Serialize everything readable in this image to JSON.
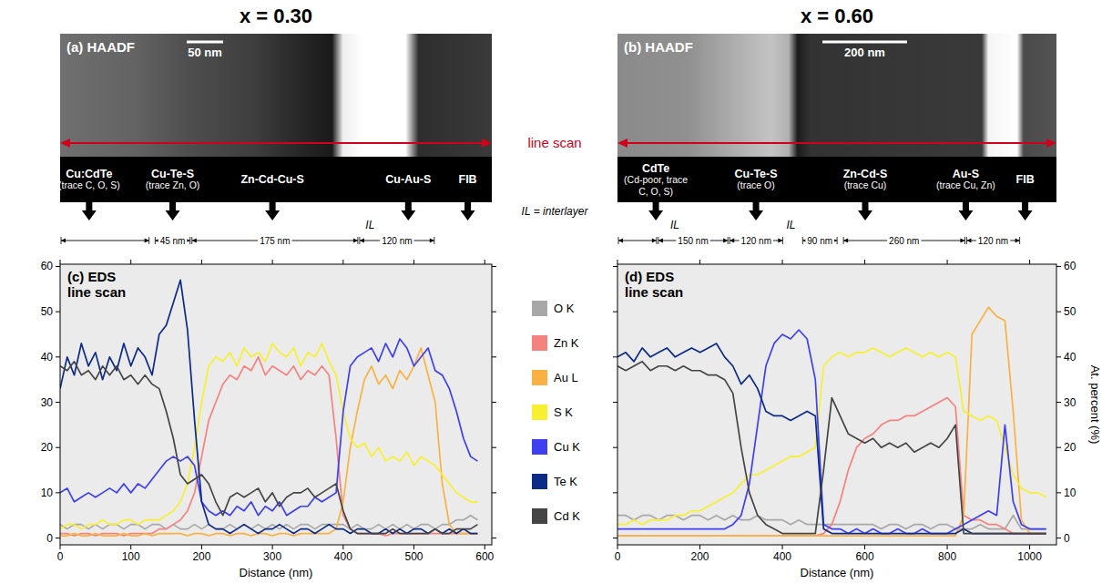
{
  "figure": {
    "line_scan_label": "line scan",
    "interlayer_note": "IL = interlayer"
  },
  "chart_data": [
    {
      "type": "line",
      "title": "x = 0.30",
      "image_label": "(a) HAADF",
      "scale_bar": "50 nm",
      "panel_label": "(c) EDS line scan",
      "x_label": "Distance (nm)",
      "legend": "right",
      "grid": false,
      "phases": [
        {
          "name": "Cu:CdTe",
          "note": "(trace C, O, S)",
          "at": 41
        },
        {
          "name": "Cu-Te-S",
          "note": "(trace Zn, O)",
          "at": 159
        },
        {
          "name": "Zn-Cd-Cu-S",
          "at": 300
        },
        {
          "name": "Cu-Au-S",
          "at": 492
        },
        {
          "name": "FIB",
          "at": 576
        }
      ],
      "spans": [
        {
          "start": 0,
          "end": 127
        },
        {
          "start": 133,
          "end": 185,
          "label": "45 nm"
        },
        {
          "start": 185,
          "end": 422,
          "label": "175 nm"
        },
        {
          "start": 422,
          "end": 530,
          "label": "120 nm"
        }
      ],
      "il_marks": [
        {
          "at": 438,
          "label": "IL"
        }
      ],
      "xlim": [
        0,
        610
      ],
      "xticks": [
        0,
        100,
        200,
        300,
        400,
        500,
        600
      ],
      "ylim": [
        -1.5,
        60.5
      ],
      "yticks": [
        0,
        10,
        20,
        30,
        40,
        50,
        60
      ],
      "x": [
        0,
        10,
        20,
        30,
        40,
        50,
        60,
        70,
        80,
        90,
        100,
        110,
        120,
        130,
        140,
        150,
        160,
        170,
        180,
        190,
        200,
        210,
        220,
        230,
        240,
        250,
        260,
        270,
        280,
        290,
        300,
        310,
        320,
        330,
        340,
        350,
        360,
        370,
        380,
        390,
        400,
        410,
        420,
        430,
        440,
        450,
        460,
        470,
        480,
        490,
        500,
        510,
        520,
        530,
        540,
        550,
        560,
        570,
        580,
        590
      ],
      "series": [
        {
          "name": "O K",
          "color": "#a8a8a8",
          "values": [
            3,
            2,
            3,
            3,
            2,
            3,
            2,
            3,
            3,
            2,
            3,
            3,
            2,
            3,
            3,
            2,
            3,
            2,
            2,
            3,
            2,
            3,
            2,
            2,
            3,
            2,
            3,
            2,
            3,
            2,
            3,
            2,
            3,
            2,
            3,
            3,
            2,
            3,
            3,
            3,
            3,
            2,
            3,
            2,
            2,
            3,
            2,
            3,
            2,
            3,
            2,
            3,
            3,
            2,
            3,
            3,
            4,
            4,
            5,
            4
          ]
        },
        {
          "name": "Zn K",
          "color": "#f4827e",
          "values": [
            1,
            1,
            0.5,
            1,
            1,
            0.5,
            1,
            1,
            1,
            0.5,
            1,
            1,
            1,
            1,
            2,
            2,
            3,
            4,
            6,
            10,
            18,
            26,
            30,
            34,
            36,
            35,
            38,
            37,
            40,
            36,
            38,
            37,
            36,
            38,
            35,
            37,
            36,
            38,
            36,
            22,
            5,
            2,
            1,
            1,
            1,
            1,
            0.5,
            1,
            1,
            1,
            1,
            1,
            1,
            1,
            1,
            1,
            1,
            1,
            1,
            1
          ]
        },
        {
          "name": "Au L",
          "color": "#f8b142",
          "values": [
            0.5,
            0.5,
            1,
            0.5,
            0.5,
            1,
            0.5,
            0.5,
            0.5,
            1,
            0.5,
            0.5,
            1,
            0.5,
            1,
            1,
            1,
            1,
            0.5,
            1,
            1,
            0.5,
            1,
            1,
            0.5,
            1,
            1,
            0.5,
            1,
            1,
            0.5,
            1,
            1,
            0.5,
            1,
            1,
            1,
            1,
            1,
            2,
            8,
            20,
            28,
            35,
            38,
            34,
            36,
            33,
            37,
            35,
            38,
            42,
            36,
            30,
            12,
            3,
            1,
            1,
            1,
            1
          ]
        },
        {
          "name": "S K",
          "color": "#f7f030",
          "values": [
            2,
            3,
            3,
            2,
            3,
            3,
            4,
            3,
            3,
            4,
            4,
            3,
            4,
            4,
            4,
            5,
            6,
            8,
            12,
            20,
            30,
            38,
            40,
            39,
            41,
            38,
            42,
            40,
            41,
            39,
            43,
            41,
            40,
            42,
            38,
            41,
            40,
            43,
            39,
            36,
            28,
            22,
            20,
            21,
            18,
            20,
            17,
            18,
            17,
            19,
            16,
            18,
            17,
            16,
            14,
            12,
            10,
            9,
            8,
            8
          ]
        },
        {
          "name": "Cu K",
          "color": "#3f3ff2",
          "values": [
            10,
            11,
            8,
            9,
            10,
            9,
            10,
            11,
            10,
            12,
            10,
            12,
            11,
            13,
            15,
            17,
            18,
            17,
            18,
            16,
            8,
            6,
            5,
            6,
            5,
            7,
            6,
            8,
            5,
            7,
            6,
            8,
            5,
            6,
            7,
            7,
            9,
            8,
            9,
            10,
            28,
            38,
            40,
            41,
            42,
            39,
            43,
            40,
            44,
            42,
            38,
            40,
            42,
            37,
            36,
            33,
            28,
            22,
            18,
            17
          ]
        },
        {
          "name": "Te K",
          "color": "#0c2b86",
          "values": [
            33,
            40,
            36,
            43,
            38,
            41,
            35,
            40,
            37,
            43,
            38,
            42,
            40,
            36,
            45,
            47,
            52,
            57,
            46,
            26,
            8,
            3,
            2,
            2,
            1,
            2,
            3,
            2,
            1,
            2,
            2,
            3,
            2,
            1,
            2,
            2,
            1,
            2,
            3,
            2,
            2,
            1,
            2,
            2,
            1,
            1,
            2,
            1,
            2,
            1,
            2,
            2,
            1,
            2,
            1,
            2,
            1,
            2,
            1,
            1
          ]
        },
        {
          "name": "Cd K",
          "color": "#454545",
          "values": [
            38,
            37,
            39,
            36,
            37,
            35,
            38,
            36,
            38,
            35,
            36,
            34,
            36,
            34,
            33,
            28,
            22,
            14,
            12,
            13,
            14,
            12,
            8,
            5,
            9,
            10,
            9,
            10,
            11,
            8,
            10,
            7,
            9,
            10,
            10,
            11,
            9,
            10,
            11,
            12,
            6,
            2,
            1,
            1,
            1,
            1,
            1,
            2,
            1,
            1,
            1,
            1,
            1,
            2,
            1,
            1,
            2,
            2,
            2,
            3
          ]
        }
      ]
    },
    {
      "type": "line",
      "title": "x = 0.60",
      "image_label": "(b) HAADF",
      "scale_bar": "200 nm",
      "panel_label": "(d) EDS line scan",
      "x_label": "Distance (nm)",
      "y_label": "At. percent (%)",
      "grid": false,
      "phases": [
        {
          "name": "CdTe",
          "note": "(Cd-poor, trace C, O, S)",
          "at": 93
        },
        {
          "name": "Cu-Te-S",
          "note": "(trace O)",
          "at": 336
        },
        {
          "name": "Zn-Cd-S",
          "note": "(trace Cu)",
          "at": 601
        },
        {
          "name": "Au-S",
          "note": "(trace Cu, Zn)",
          "at": 845
        },
        {
          "name": "FIB",
          "at": 989
        }
      ],
      "spans": [
        {
          "start": 0,
          "end": 97
        },
        {
          "start": 97,
          "end": 270,
          "label": "150 nm"
        },
        {
          "start": 270,
          "end": 403,
          "label": "120 nm"
        },
        {
          "start": 447,
          "end": 535,
          "label": "90 nm"
        },
        {
          "start": 546,
          "end": 845,
          "label": "260 nm"
        },
        {
          "start": 845,
          "end": 978,
          "label": "120 nm"
        }
      ],
      "il_marks": [
        {
          "at": 139,
          "label": "IL"
        },
        {
          "at": 421,
          "label": "IL"
        }
      ],
      "xlim": [
        0,
        1065
      ],
      "xticks": [
        0,
        200,
        400,
        600,
        800,
        1000
      ],
      "ylim": [
        -1.5,
        60.5
      ],
      "yticks": [
        0,
        10,
        20,
        30,
        40,
        50,
        60
      ],
      "x": [
        0,
        20,
        40,
        60,
        80,
        100,
        120,
        140,
        160,
        180,
        200,
        220,
        240,
        260,
        280,
        300,
        320,
        340,
        360,
        380,
        400,
        420,
        440,
        460,
        480,
        500,
        520,
        540,
        560,
        580,
        600,
        620,
        640,
        660,
        680,
        700,
        720,
        740,
        760,
        780,
        800,
        820,
        840,
        860,
        880,
        900,
        920,
        940,
        960,
        980,
        1000,
        1020,
        1040
      ],
      "series": [
        {
          "name": "O K",
          "color": "#a8a8a8",
          "values": [
            5,
            5,
            4,
            5,
            5,
            4,
            5,
            5,
            4,
            5,
            5,
            4,
            5,
            4,
            5,
            4,
            4,
            5,
            4,
            4,
            4,
            3,
            4,
            3,
            3,
            3,
            3,
            3,
            3,
            3,
            3,
            3,
            2,
            3,
            3,
            2,
            3,
            3,
            2,
            3,
            3,
            2,
            2,
            2,
            3,
            2,
            2,
            2,
            5,
            2,
            2,
            2,
            2
          ]
        },
        {
          "name": "Zn K",
          "color": "#f4827e",
          "values": [
            0.5,
            0.5,
            0.5,
            0.5,
            0.5,
            0.5,
            0.5,
            0.5,
            0.5,
            0.5,
            0.5,
            0.5,
            0.5,
            0.5,
            0.5,
            0.5,
            0.5,
            0.5,
            0.5,
            0.5,
            0.5,
            0.5,
            0.5,
            0.5,
            0.5,
            1,
            3,
            8,
            15,
            20,
            22,
            23,
            25,
            26,
            26,
            27,
            27,
            28,
            29,
            30,
            31,
            29,
            5,
            4,
            4,
            3,
            3,
            2,
            1,
            1,
            1,
            1,
            1
          ]
        },
        {
          "name": "Au L",
          "color": "#f8b142",
          "values": [
            0.5,
            0.5,
            0.5,
            0.5,
            0.5,
            0.5,
            0.5,
            0.5,
            0.5,
            0.5,
            0.5,
            0.5,
            0.5,
            0.5,
            0.5,
            0.5,
            0.5,
            0.5,
            0.5,
            0.5,
            0.5,
            0.5,
            0.5,
            0.5,
            0.5,
            0.5,
            0.5,
            0.5,
            0.5,
            0.5,
            0.5,
            0.5,
            0.5,
            0.5,
            0.5,
            0.5,
            0.5,
            0.5,
            0.5,
            0.5,
            0.5,
            0.5,
            5,
            45,
            48,
            51,
            49,
            48,
            28,
            4,
            1,
            1,
            1
          ]
        },
        {
          "name": "S K",
          "color": "#f7f030",
          "values": [
            3,
            3,
            4,
            3,
            4,
            4,
            4,
            5,
            5,
            6,
            6,
            7,
            8,
            9,
            10,
            12,
            14,
            14,
            15,
            16,
            17,
            18,
            18,
            19,
            20,
            38,
            40,
            41,
            40,
            41,
            41,
            42,
            41,
            40,
            41,
            42,
            41,
            40,
            41,
            40,
            41,
            40,
            28,
            27,
            26,
            27,
            26,
            20,
            14,
            11,
            10,
            10,
            9
          ]
        },
        {
          "name": "Cu K",
          "color": "#3f3ff2",
          "values": [
            2,
            2,
            2,
            2,
            2,
            2,
            2,
            2,
            2,
            2,
            2,
            2,
            2,
            2,
            3,
            5,
            12,
            25,
            38,
            43,
            45,
            44,
            46,
            44,
            35,
            3,
            2,
            2,
            1,
            2,
            1,
            2,
            1,
            1,
            2,
            1,
            1,
            2,
            1,
            1,
            1,
            2,
            3,
            4,
            5,
            6,
            5,
            25,
            8,
            3,
            2,
            2,
            2
          ]
        },
        {
          "name": "Te K",
          "color": "#0c2b86",
          "values": [
            40,
            41,
            39,
            42,
            40,
            41,
            42,
            40,
            41,
            42,
            41,
            42,
            43,
            40,
            38,
            34,
            36,
            33,
            28,
            27,
            27,
            26,
            27,
            28,
            27,
            2,
            1,
            1,
            1,
            1,
            1,
            1,
            1,
            1,
            1,
            1,
            1,
            1,
            1,
            1,
            1,
            1,
            2,
            1,
            1,
            1,
            1,
            1,
            1,
            1,
            1,
            1,
            1
          ]
        },
        {
          "name": "Cd K",
          "color": "#454545",
          "values": [
            38,
            37,
            38,
            39,
            37,
            38,
            38,
            37,
            38,
            37,
            37,
            36,
            36,
            35,
            32,
            20,
            10,
            5,
            3,
            2,
            1,
            1,
            1,
            1,
            1,
            15,
            31,
            27,
            23,
            22,
            21,
            22,
            20,
            21,
            20,
            21,
            19,
            20,
            21,
            20,
            22,
            25,
            1,
            1,
            1,
            1,
            1,
            1,
            1,
            1,
            1,
            1,
            1
          ]
        }
      ]
    }
  ]
}
